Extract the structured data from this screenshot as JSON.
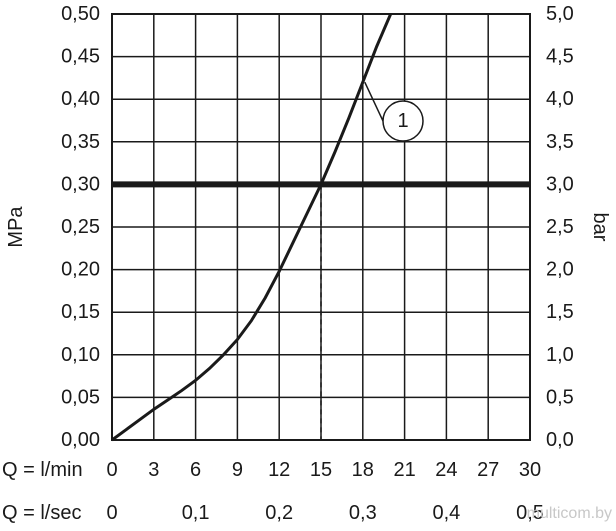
{
  "chart_data": {
    "type": "line",
    "title": "",
    "ylabel_left": "MPa",
    "ylabel_right": "bar",
    "x_rows": [
      {
        "label": "Q = l/min",
        "ticks": [
          "0",
          "3",
          "6",
          "9",
          "12",
          "15",
          "18",
          "21",
          "24",
          "27",
          "30"
        ]
      },
      {
        "label": "Q = l/sec",
        "ticks": [
          "0",
          "0,1",
          "0,2",
          "0,3",
          "0,4",
          "0,5"
        ]
      }
    ],
    "xlim": [
      0,
      30
    ],
    "ylim_left": [
      0,
      0.5
    ],
    "ylim_right": [
      0,
      5
    ],
    "yticks_left": [
      "0,00",
      "0,05",
      "0,10",
      "0,15",
      "0,20",
      "0,25",
      "0,30",
      "0,35",
      "0,40",
      "0,45",
      "0,50"
    ],
    "yticks_right": [
      "0,0",
      "0,5",
      "1,0",
      "1,5",
      "2,0",
      "2,5",
      "3,0",
      "3,5",
      "4,0",
      "4,5",
      "5,0"
    ],
    "grid": true,
    "series": [
      {
        "name": "1",
        "x": [
          0,
          1,
          2,
          3,
          4,
          5,
          6,
          7,
          8,
          9,
          10,
          11,
          12,
          13,
          14,
          15,
          16,
          17,
          18,
          19,
          20
        ],
        "y": [
          0,
          0.012,
          0.024,
          0.036,
          0.047,
          0.058,
          0.07,
          0.084,
          0.1,
          0.118,
          0.14,
          0.167,
          0.198,
          0.232,
          0.266,
          0.3,
          0.338,
          0.378,
          0.42,
          0.462,
          0.5
        ],
        "color": "#1a1a1a"
      }
    ],
    "reference_line": {
      "y": 0.3
    },
    "drop_line": {
      "x": 15
    },
    "callout": {
      "text": "1",
      "target_x": 18
    }
  },
  "watermark": "multicom.by"
}
